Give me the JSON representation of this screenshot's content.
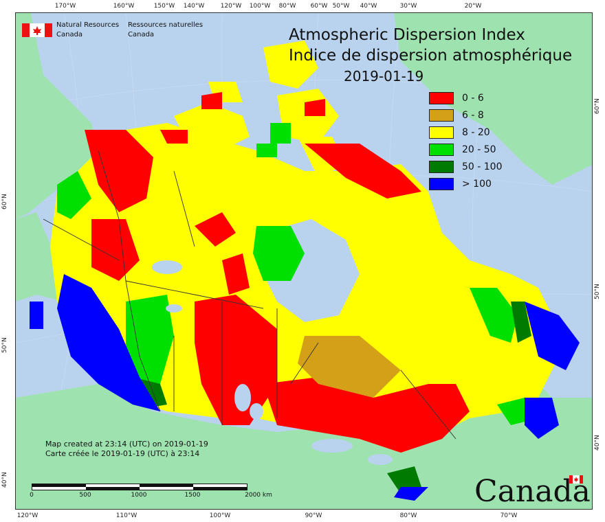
{
  "title": {
    "en": "Atmospheric Dispersion Index",
    "fr": "Indice de dispersion atmosphérique",
    "date": "2019-01-19"
  },
  "agency": {
    "line1_en": "Natural Resources",
    "line2_en": "Canada",
    "line1_fr": "Ressources naturelles",
    "line2_fr": "Canada"
  },
  "legend": [
    {
      "label": "0 - 6",
      "color": "#ff0000"
    },
    {
      "label": "6 - 8",
      "color": "#d4a017"
    },
    {
      "label": "8 - 20",
      "color": "#ffff00"
    },
    {
      "label": "20 - 50",
      "color": "#00e000"
    },
    {
      "label": "50 - 100",
      "color": "#007a00"
    },
    {
      "label": "> 100",
      "color": "#0000ff"
    }
  ],
  "footnote": {
    "en": "Map created at 23:14 (UTC) on 2019-01-19",
    "fr": "Carte créée le 2019-01-19 (UTC) à 23:14"
  },
  "scale": {
    "ticks": [
      "0",
      "500",
      "1000",
      "1500",
      "2000  km"
    ]
  },
  "wordmark": "Canada",
  "axes": {
    "top": [
      "170°W",
      "160°W",
      "150°W",
      "140°W",
      "120°W",
      "100°W",
      "80°W",
      "60°W",
      "50°W",
      "40°W",
      "30°W",
      "20°W"
    ],
    "bottom": [
      "120°W",
      "110°W",
      "100°W",
      "90°W",
      "80°W",
      "70°W"
    ],
    "left": [
      "60°N",
      "50°N",
      "40°N"
    ],
    "right": [
      "60°N",
      "50°N",
      "40°N"
    ]
  },
  "colors": {
    "ocean": "#b9d3ee",
    "land_outside": "#9ee2b0",
    "boundary": "#333333"
  }
}
